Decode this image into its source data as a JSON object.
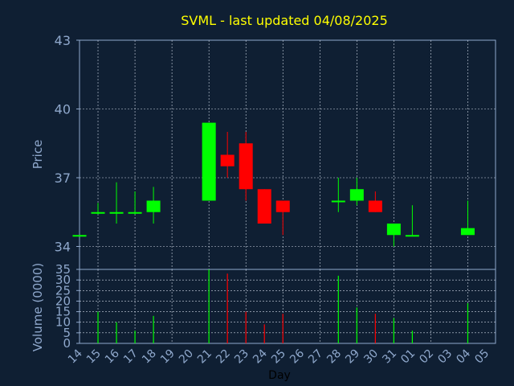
{
  "chart_data": [
    {
      "type": "candlestick",
      "title": "SVML - last updated 04/08/2025",
      "ylabel": "Price",
      "xlabel": "",
      "ylim": [
        33,
        43
      ],
      "y_ticks": [
        34,
        37,
        40,
        43
      ],
      "grid": true,
      "x_ticks": [
        "14",
        "15",
        "16",
        "17",
        "18",
        "19",
        "20",
        "21",
        "22",
        "23",
        "24",
        "25",
        "26",
        "27",
        "28",
        "29",
        "30",
        "31",
        "01",
        "02",
        "03",
        "04",
        "05"
      ],
      "colors": {
        "up": "#00ff00",
        "down": "#ff0000",
        "title": "#ffff00",
        "axis_text": "#8fa8cc"
      },
      "series": [
        {
          "day": "14",
          "open": 34.5,
          "high": 34.5,
          "low": 34.5,
          "close": 34.5
        },
        {
          "day": "15",
          "open": 35.5,
          "high": 35.9,
          "low": 35.4,
          "close": 35.5
        },
        {
          "day": "16",
          "open": 35.5,
          "high": 36.8,
          "low": 35.0,
          "close": 35.5
        },
        {
          "day": "17",
          "open": 35.5,
          "high": 36.4,
          "low": 35.4,
          "close": 35.5
        },
        {
          "day": "18",
          "open": 35.5,
          "high": 36.6,
          "low": 35.0,
          "close": 36.0
        },
        {
          "day": "21",
          "open": 36.0,
          "high": 39.4,
          "low": 36.0,
          "close": 39.4
        },
        {
          "day": "22",
          "open": 38.0,
          "high": 39.0,
          "low": 37.0,
          "close": 37.5
        },
        {
          "day": "23",
          "open": 38.5,
          "high": 39.0,
          "low": 36.0,
          "close": 36.5
        },
        {
          "day": "24",
          "open": 36.5,
          "high": 36.5,
          "low": 35.0,
          "close": 35.0
        },
        {
          "day": "25",
          "open": 36.0,
          "high": 36.0,
          "low": 34.5,
          "close": 35.5
        },
        {
          "day": "28",
          "open": 36.0,
          "high": 37.0,
          "low": 35.5,
          "close": 36.0
        },
        {
          "day": "29",
          "open": 36.0,
          "high": 37.0,
          "low": 35.8,
          "close": 36.5
        },
        {
          "day": "30",
          "open": 36.0,
          "high": 36.4,
          "low": 35.5,
          "close": 35.5
        },
        {
          "day": "31",
          "open": 34.5,
          "high": 35.0,
          "low": 34.0,
          "close": 35.0
        },
        {
          "day": "01",
          "open": 34.5,
          "high": 35.8,
          "low": 34.5,
          "close": 34.5
        },
        {
          "day": "04",
          "open": 34.5,
          "high": 36.0,
          "low": 34.5,
          "close": 34.8
        }
      ]
    },
    {
      "type": "bar",
      "ylabel": "Volume (0000)",
      "xlabel": "Day",
      "ylim": [
        0,
        35
      ],
      "y_ticks": [
        0,
        5,
        10,
        15,
        20,
        25,
        30,
        35
      ],
      "grid": true,
      "series": [
        {
          "day": "15",
          "value": 15,
          "direction": "up"
        },
        {
          "day": "16",
          "value": 10,
          "direction": "up"
        },
        {
          "day": "17",
          "value": 6,
          "direction": "up"
        },
        {
          "day": "18",
          "value": 13,
          "direction": "up"
        },
        {
          "day": "21",
          "value": 35,
          "direction": "up"
        },
        {
          "day": "22",
          "value": 33,
          "direction": "down"
        },
        {
          "day": "23",
          "value": 15,
          "direction": "down"
        },
        {
          "day": "24",
          "value": 9,
          "direction": "down"
        },
        {
          "day": "25",
          "value": 14,
          "direction": "down"
        },
        {
          "day": "28",
          "value": 32,
          "direction": "up"
        },
        {
          "day": "29",
          "value": 17,
          "direction": "up"
        },
        {
          "day": "30",
          "value": 14,
          "direction": "down"
        },
        {
          "day": "31",
          "value": 12,
          "direction": "up"
        },
        {
          "day": "01",
          "value": 6,
          "direction": "up"
        },
        {
          "day": "04",
          "value": 19,
          "direction": "up"
        }
      ]
    }
  ]
}
